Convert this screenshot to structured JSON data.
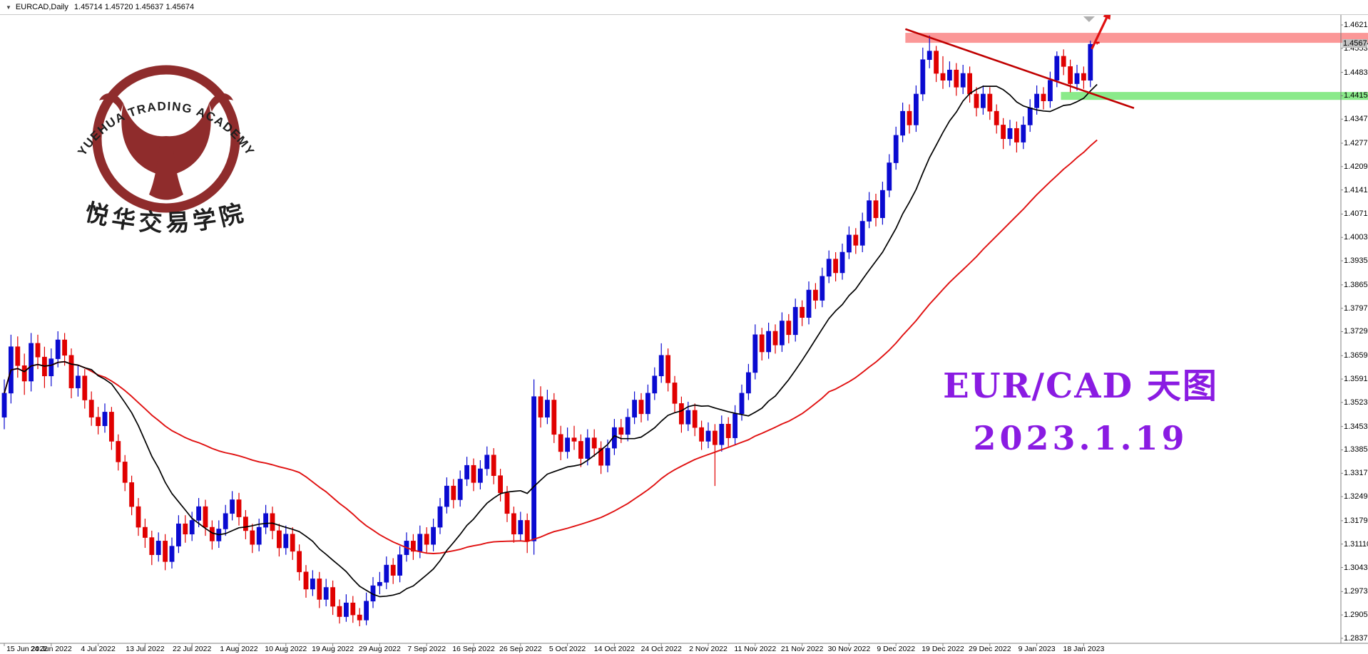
{
  "titlebar": {
    "dropdown_icon": "▼",
    "symbol_period": "EURCAD,Daily",
    "ohlc": "1.45714 1.45720 1.45637 1.45674"
  },
  "logo": {
    "arc_text": "YUEHUA TRADING ACADEMY",
    "cn_text": "悦华交易学院",
    "color": "#8B2424"
  },
  "annotation": {
    "line1": "EUR/CAD 天图",
    "line2": "2023.1.19",
    "color": "#8A1BE2"
  },
  "colors": {
    "bull": "#0A0AD0",
    "bear": "#E00000",
    "ma_fast": "#000000",
    "ma_slow": "#E01010",
    "resistance_zone": "#FB8C8C",
    "support_zone": "#7DE87D",
    "trendline": "#C00000",
    "arrow": "#E01010",
    "axis_line": "#808080",
    "current_tag_bg": "#C0C0C0"
  },
  "chart_data": {
    "type": "candlestick",
    "symbol": "EURCAD",
    "timeframe": "Daily",
    "ylim": [
      1.2837,
      1.4621
    ],
    "last_price": "1.45674",
    "price_ticks": [
      "1.46210",
      "1.45530",
      "1.44830",
      "1.44150",
      "1.43470",
      "1.42770",
      "1.42090",
      "1.41410",
      "1.40710",
      "1.40030",
      "1.39350",
      "1.38650",
      "1.37970",
      "1.37290",
      "1.36590",
      "1.35910",
      "1.35230",
      "1.34530",
      "1.33850",
      "1.33170",
      "1.32490",
      "1.31790",
      "1.31110",
      "1.30430",
      "1.29730",
      "1.29050",
      "1.28370"
    ],
    "time_ticks": [
      "15 Jun 2022",
      "24 Jun 2022",
      "4 Jul 2022",
      "13 Jul 2022",
      "22 Jul 2022",
      "1 Aug 2022",
      "10 Aug 2022",
      "19 Aug 2022",
      "29 Aug 2022",
      "7 Sep 2022",
      "16 Sep 2022",
      "26 Sep 2022",
      "5 Oct 2022",
      "14 Oct 2022",
      "24 Oct 2022",
      "2 Nov 2022",
      "11 Nov 2022",
      "21 Nov 2022",
      "30 Nov 2022",
      "9 Dec 2022",
      "19 Dec 2022",
      "29 Dec 2022",
      "9 Jan 2023",
      "18 Jan 2023"
    ],
    "ma": [
      {
        "name": "fast-ma",
        "period": 13,
        "color_key": "ma_fast",
        "width": 1.7
      },
      {
        "name": "slow-ma",
        "period": 45,
        "color_key": "ma_slow",
        "width": 1.9
      }
    ],
    "candles": [
      [
        1.348,
        1.359,
        1.3445,
        1.355
      ],
      [
        1.355,
        1.372,
        1.352,
        1.3685
      ],
      [
        1.3685,
        1.3715,
        1.3595,
        1.363
      ],
      [
        1.363,
        1.3665,
        1.3545,
        1.3585
      ],
      [
        1.3585,
        1.3725,
        1.3555,
        1.3695
      ],
      [
        1.3695,
        1.372,
        1.362,
        1.3655
      ],
      [
        1.3655,
        1.3685,
        1.3565,
        1.36
      ],
      [
        1.36,
        1.368,
        1.357,
        1.365
      ],
      [
        1.365,
        1.373,
        1.3625,
        1.3705
      ],
      [
        1.3705,
        1.3725,
        1.363,
        1.366
      ],
      [
        1.366,
        1.368,
        1.3535,
        1.3565
      ],
      [
        1.3565,
        1.363,
        1.354,
        1.36
      ],
      [
        1.36,
        1.362,
        1.3505,
        1.353
      ],
      [
        1.353,
        1.3555,
        1.3455,
        1.348
      ],
      [
        1.348,
        1.351,
        1.343,
        1.3455
      ],
      [
        1.3455,
        1.352,
        1.3435,
        1.3495
      ],
      [
        1.3495,
        1.351,
        1.3385,
        1.341
      ],
      [
        1.341,
        1.343,
        1.3325,
        1.335
      ],
      [
        1.335,
        1.337,
        1.3265,
        1.329
      ],
      [
        1.329,
        1.331,
        1.3195,
        1.322
      ],
      [
        1.322,
        1.3245,
        1.3135,
        1.316
      ],
      [
        1.316,
        1.3185,
        1.31,
        1.313
      ],
      [
        1.313,
        1.315,
        1.305,
        1.308
      ],
      [
        1.308,
        1.3145,
        1.306,
        1.312
      ],
      [
        1.312,
        1.314,
        1.3035,
        1.306
      ],
      [
        1.306,
        1.313,
        1.304,
        1.3105
      ],
      [
        1.3105,
        1.3195,
        1.3085,
        1.317
      ],
      [
        1.317,
        1.3195,
        1.3115,
        1.314
      ],
      [
        1.314,
        1.3205,
        1.312,
        1.318
      ],
      [
        1.318,
        1.3245,
        1.316,
        1.322
      ],
      [
        1.322,
        1.324,
        1.3135,
        1.316
      ],
      [
        1.316,
        1.318,
        1.3095,
        1.312
      ],
      [
        1.312,
        1.318,
        1.31,
        1.3155
      ],
      [
        1.3155,
        1.3225,
        1.3135,
        1.32
      ],
      [
        1.32,
        1.3265,
        1.318,
        1.324
      ],
      [
        1.324,
        1.326,
        1.3165,
        1.319
      ],
      [
        1.319,
        1.321,
        1.3125,
        1.315
      ],
      [
        1.315,
        1.317,
        1.3085,
        1.311
      ],
      [
        1.311,
        1.3185,
        1.309,
        1.316
      ],
      [
        1.316,
        1.3225,
        1.314,
        1.32
      ],
      [
        1.32,
        1.322,
        1.3125,
        1.315
      ],
      [
        1.315,
        1.317,
        1.3075,
        1.31
      ],
      [
        1.31,
        1.3165,
        1.308,
        1.314
      ],
      [
        1.314,
        1.316,
        1.3065,
        1.309
      ],
      [
        1.309,
        1.311,
        1.3005,
        1.303
      ],
      [
        1.303,
        1.305,
        1.2955,
        1.298
      ],
      [
        1.298,
        1.3035,
        1.296,
        1.301
      ],
      [
        1.301,
        1.303,
        1.2925,
        1.295
      ],
      [
        1.295,
        1.301,
        1.293,
        1.2985
      ],
      [
        1.2985,
        1.3005,
        1.2905,
        1.293
      ],
      [
        1.293,
        1.295,
        1.288,
        1.29
      ],
      [
        1.29,
        1.2965,
        1.2885,
        1.294
      ],
      [
        1.294,
        1.296,
        1.2882,
        1.2905
      ],
      [
        1.2905,
        1.2925,
        1.2872,
        1.289
      ],
      [
        1.289,
        1.297,
        1.2875,
        1.2945
      ],
      [
        1.2945,
        1.3015,
        1.2925,
        1.299
      ],
      [
        1.299,
        1.303,
        1.2965,
        1.3
      ],
      [
        1.3,
        1.3075,
        1.298,
        1.305
      ],
      [
        1.305,
        1.307,
        1.2995,
        1.302
      ],
      [
        1.302,
        1.3105,
        1.3,
        1.308
      ],
      [
        1.308,
        1.3145,
        1.306,
        1.312
      ],
      [
        1.312,
        1.314,
        1.3065,
        1.309
      ],
      [
        1.309,
        1.3165,
        1.307,
        1.314
      ],
      [
        1.314,
        1.316,
        1.3085,
        1.311
      ],
      [
        1.311,
        1.3185,
        1.309,
        1.316
      ],
      [
        1.316,
        1.3245,
        1.314,
        1.322
      ],
      [
        1.322,
        1.3305,
        1.32,
        1.328
      ],
      [
        1.328,
        1.33,
        1.3215,
        1.324
      ],
      [
        1.324,
        1.3325,
        1.322,
        1.33
      ],
      [
        1.33,
        1.3365,
        1.328,
        1.334
      ],
      [
        1.334,
        1.336,
        1.3265,
        1.329
      ],
      [
        1.329,
        1.3355,
        1.327,
        1.333
      ],
      [
        1.333,
        1.3395,
        1.331,
        1.337
      ],
      [
        1.337,
        1.339,
        1.3285,
        1.331
      ],
      [
        1.331,
        1.333,
        1.3235,
        1.326
      ],
      [
        1.326,
        1.328,
        1.3175,
        1.32
      ],
      [
        1.32,
        1.322,
        1.3115,
        1.314
      ],
      [
        1.314,
        1.3205,
        1.312,
        1.318
      ],
      [
        1.318,
        1.32,
        1.3085,
        1.312
      ],
      [
        1.312,
        1.359,
        1.308,
        1.354
      ],
      [
        1.354,
        1.357,
        1.345,
        1.348
      ],
      [
        1.348,
        1.356,
        1.346,
        1.353
      ],
      [
        1.353,
        1.355,
        1.3405,
        1.343
      ],
      [
        1.343,
        1.3455,
        1.3355,
        1.338
      ],
      [
        1.338,
        1.345,
        1.336,
        1.342
      ],
      [
        1.342,
        1.3455,
        1.3385,
        1.341
      ],
      [
        1.341,
        1.343,
        1.3335,
        1.336
      ],
      [
        1.336,
        1.3445,
        1.334,
        1.342
      ],
      [
        1.342,
        1.3445,
        1.3365,
        1.339
      ],
      [
        1.339,
        1.341,
        1.3315,
        1.334
      ],
      [
        1.334,
        1.3415,
        1.332,
        1.339
      ],
      [
        1.339,
        1.3475,
        1.337,
        1.345
      ],
      [
        1.345,
        1.3475,
        1.3405,
        1.343
      ],
      [
        1.343,
        1.3505,
        1.341,
        1.348
      ],
      [
        1.348,
        1.3555,
        1.346,
        1.353
      ],
      [
        1.353,
        1.355,
        1.3465,
        1.349
      ],
      [
        1.349,
        1.3575,
        1.347,
        1.355
      ],
      [
        1.355,
        1.3625,
        1.353,
        1.36
      ],
      [
        1.36,
        1.3695,
        1.358,
        1.366
      ],
      [
        1.366,
        1.368,
        1.3555,
        1.358
      ],
      [
        1.358,
        1.36,
        1.3495,
        1.352
      ],
      [
        1.352,
        1.354,
        1.3435,
        1.346
      ],
      [
        1.346,
        1.3525,
        1.344,
        1.35
      ],
      [
        1.35,
        1.352,
        1.3425,
        1.345
      ],
      [
        1.345,
        1.347,
        1.3385,
        1.341
      ],
      [
        1.341,
        1.3465,
        1.339,
        1.344
      ],
      [
        1.344,
        1.346,
        1.328,
        1.34
      ],
      [
        1.34,
        1.3485,
        1.338,
        1.346
      ],
      [
        1.346,
        1.348,
        1.3395,
        1.342
      ],
      [
        1.342,
        1.3515,
        1.34,
        1.349
      ],
      [
        1.349,
        1.3575,
        1.347,
        1.355
      ],
      [
        1.355,
        1.3635,
        1.353,
        1.361
      ],
      [
        1.361,
        1.375,
        1.359,
        1.372
      ],
      [
        1.372,
        1.374,
        1.3645,
        1.367
      ],
      [
        1.367,
        1.3755,
        1.365,
        1.373
      ],
      [
        1.373,
        1.375,
        1.3665,
        1.369
      ],
      [
        1.369,
        1.3785,
        1.367,
        1.376
      ],
      [
        1.376,
        1.378,
        1.3695,
        1.372
      ],
      [
        1.372,
        1.3825,
        1.37,
        1.38
      ],
      [
        1.38,
        1.382,
        1.3745,
        1.377
      ],
      [
        1.377,
        1.3875,
        1.375,
        1.385
      ],
      [
        1.385,
        1.387,
        1.3795,
        1.382
      ],
      [
        1.382,
        1.3915,
        1.38,
        1.389
      ],
      [
        1.389,
        1.3965,
        1.387,
        1.394
      ],
      [
        1.394,
        1.396,
        1.3875,
        1.39
      ],
      [
        1.39,
        1.3985,
        1.388,
        1.396
      ],
      [
        1.396,
        1.4035,
        1.394,
        1.401
      ],
      [
        1.401,
        1.403,
        1.3955,
        1.398
      ],
      [
        1.398,
        1.4075,
        1.396,
        1.405
      ],
      [
        1.405,
        1.4135,
        1.403,
        1.411
      ],
      [
        1.411,
        1.413,
        1.4035,
        1.406
      ],
      [
        1.406,
        1.4165,
        1.404,
        1.414
      ],
      [
        1.414,
        1.4245,
        1.412,
        1.422
      ],
      [
        1.422,
        1.4325,
        1.42,
        1.43
      ],
      [
        1.43,
        1.4395,
        1.428,
        1.437
      ],
      [
        1.437,
        1.439,
        1.4305,
        1.433
      ],
      [
        1.433,
        1.4445,
        1.431,
        1.442
      ],
      [
        1.442,
        1.4555,
        1.44,
        1.452
      ],
      [
        1.452,
        1.459,
        1.4495,
        1.4545
      ],
      [
        1.4545,
        1.456,
        1.4455,
        1.448
      ],
      [
        1.448,
        1.453,
        1.4435,
        1.446
      ],
      [
        1.446,
        1.4515,
        1.444,
        1.449
      ],
      [
        1.449,
        1.451,
        1.4415,
        1.444
      ],
      [
        1.444,
        1.4505,
        1.442,
        1.448
      ],
      [
        1.448,
        1.45,
        1.4395,
        1.442
      ],
      [
        1.442,
        1.444,
        1.4355,
        1.438
      ],
      [
        1.438,
        1.4445,
        1.436,
        1.442
      ],
      [
        1.442,
        1.444,
        1.4345,
        1.437
      ],
      [
        1.437,
        1.439,
        1.4305,
        1.433
      ],
      [
        1.433,
        1.435,
        1.426,
        1.429
      ],
      [
        1.429,
        1.4345,
        1.427,
        1.432
      ],
      [
        1.432,
        1.434,
        1.425,
        1.428
      ],
      [
        1.428,
        1.4355,
        1.426,
        1.433
      ],
      [
        1.433,
        1.4405,
        1.431,
        1.438
      ],
      [
        1.438,
        1.4445,
        1.436,
        1.442
      ],
      [
        1.442,
        1.444,
        1.4375,
        1.44
      ],
      [
        1.44,
        1.4485,
        1.438,
        1.446
      ],
      [
        1.446,
        1.4544,
        1.444,
        1.453
      ],
      [
        1.453,
        1.455,
        1.4475,
        1.45
      ],
      [
        1.45,
        1.452,
        1.4425,
        1.445
      ],
      [
        1.445,
        1.4505,
        1.443,
        1.448
      ],
      [
        1.448,
        1.45,
        1.4435,
        1.446
      ],
      [
        1.446,
        1.4575,
        1.444,
        1.4565
      ],
      [
        1.45714,
        1.4572,
        1.45637,
        1.45674
      ]
    ],
    "overlays": {
      "resistance_zone": {
        "price_top": 1.4598,
        "price_bottom": 1.4569,
        "start_bar": 134.4
      },
      "support_zone": {
        "price_top": 1.4426,
        "price_bottom": 1.4403,
        "start_bar": 157.6
      },
      "trendline": {
        "from_bar": 134.4,
        "from_price": 1.4609,
        "to_bar": 168.5,
        "to_price": 1.4379
      },
      "arrow": {
        "from_bar": 162.2,
        "from_price": 1.4551,
        "to_bar": 165.1,
        "to_price": 1.4669
      },
      "shift_marker_bar": 161.8
    }
  }
}
